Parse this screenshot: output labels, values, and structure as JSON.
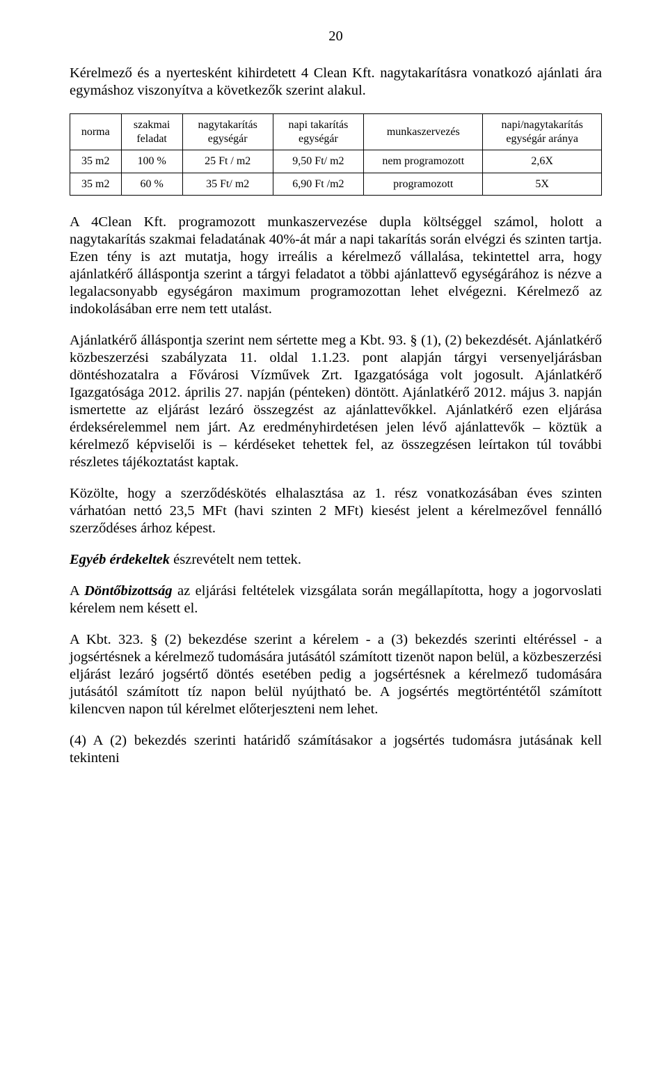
{
  "page_number": "20",
  "intro": "Kérelmező és a nyertesként kihirdetett 4 Clean Kft. nagytakarításra vonatkozó ajánlati ára egymáshoz viszonyítva a következők szerint alakul.",
  "table": {
    "type": "table",
    "border_color": "#000000",
    "background_color": "#ffffff",
    "font_size": 16,
    "columns": [
      {
        "line1": "norma",
        "line2": ""
      },
      {
        "line1": "szakmai",
        "line2": "feladat"
      },
      {
        "line1": "nagytakarítás",
        "line2": "egységár"
      },
      {
        "line1": "napi takarítás",
        "line2": "egységár"
      },
      {
        "line1": "munkaszervezés",
        "line2": ""
      },
      {
        "line1": "napi/nagytakarítás",
        "line2": "egységár aránya"
      }
    ],
    "rows": [
      [
        "35 m2",
        "100 %",
        "25 Ft / m2",
        "9,50 Ft/ m2",
        "nem programozott",
        "2,6X"
      ],
      [
        "35 m2",
        "60 %",
        "35 Ft/ m2",
        "6,90 Ft /m2",
        "programozott",
        "5X"
      ]
    ]
  },
  "para1": "A 4Clean Kft. programozott munkaszervezése dupla költséggel számol, holott a nagytakarítás szakmai feladatának 40%-át már a napi takarítás során elvégzi és szinten tartja. Ezen tény is azt mutatja, hogy irreális a kérelmező vállalása, tekintettel arra, hogy ajánlatkérő álláspontja szerint a tárgyi feladatot a többi ajánlattevő egységárához is nézve a legalacsonyabb egységáron maximum programozottan lehet elvégezni. Kérelmező az indokolásában erre nem tett utalást.",
  "para2": "Ajánlatkérő álláspontja szerint nem sértette meg a Kbt. 93. § (1), (2) bekezdését. Ajánlatkérő közbeszerzési szabályzata 11. oldal 1.1.23. pont alapján tárgyi versenyeljárásban döntéshozatalra a Fővárosi Vízművek Zrt. Igazgatósága volt jogosult. Ajánlatkérő Igazgatósága 2012. április 27. napján (pénteken) döntött. Ajánlatkérő 2012. május 3. napján ismertette az eljárást lezáró összegzést az ajánlattevőkkel. Ajánlatkérő ezen eljárása érdeksérelemmel nem járt. Az eredményhirdetésen jelen lévő ajánlattevők – köztük a kérelmező képviselői is – kérdéseket tehettek fel, az összegzésen leírtakon túl további részletes tájékoztatást kaptak.",
  "para3": "Közölte, hogy a szerződéskötés elhalasztása az 1. rész vonatkozásában éves szinten várhatóan nettó 23,5 MFt (havi szinten 2 MFt) kiesést jelent a kérelmezővel fennálló szerződéses árhoz képest.",
  "para4_prefix": "Egyéb érdekeltek",
  "para4_rest": " észrevételt nem tettek.",
  "para5_prefix": "A ",
  "para5_italic": "Döntőbizottság",
  "para5_rest": " az eljárási feltételek vizsgálata során megállapította, hogy a jogorvoslati kérelem nem késett el.",
  "para6": "A Kbt. 323. § (2) bekezdése szerint a kérelem - a (3) bekezdés szerinti eltéréssel - a jogsértésnek a kérelmező tudomására jutásától számított tizenöt napon belül, a közbeszerzési eljárást lezáró jogsértő döntés esetében pedig a jogsértésnek a kérelmező tudomására jutásától számított tíz napon belül nyújtható be. A jogsértés megtörténtétől számított kilencven napon túl kérelmet előterjeszteni nem lehet.",
  "para7": "(4) A (2) bekezdés szerinti határidő számításakor a jogsértés tudomásra jutásának kell tekinteni"
}
